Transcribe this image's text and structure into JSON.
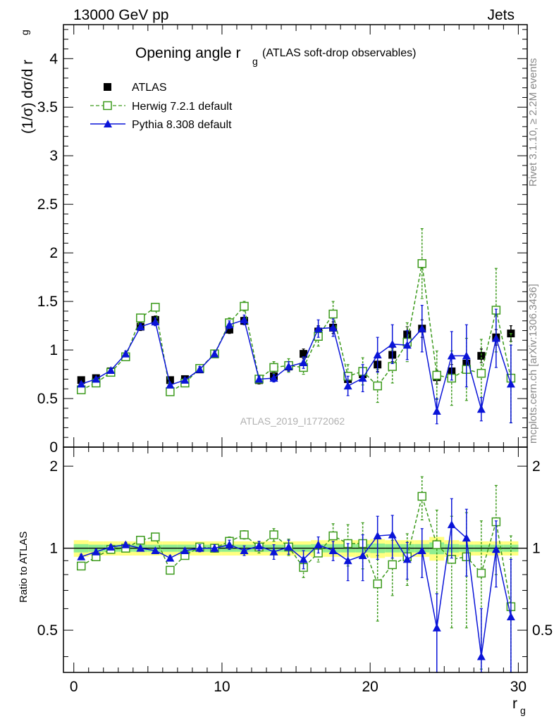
{
  "header": {
    "left": "13000 GeV pp",
    "right": "Jets"
  },
  "title": {
    "main": "Opening angle r",
    "sub": "g",
    "tail": "(ATLAS soft-drop observables)"
  },
  "side": {
    "rivet": "Rivet 3.1.10, ≥ 2.2M events",
    "mcplots": "mcplots.cern.ch [arXiv:1306.3436]"
  },
  "watermark": "ATLAS_2019_I1772062",
  "axes": {
    "ylabel_main": "(1/σ) dσ/d r",
    "ylabel_main_sub": "g",
    "ylabel_ratio": "Ratio to ATLAS",
    "xlabel": "r",
    "xlabel_sub": "g"
  },
  "colors": {
    "data": "#000000",
    "herwig": "#3c9a1c",
    "pythia": "#0a14d8",
    "band_yellow": "#ffff80",
    "band_green": "#90ee90"
  },
  "legend": [
    {
      "label": "ATLAS"
    },
    {
      "label": "Herwig 7.2.1 default"
    },
    {
      "label": "Pythia 8.308 default"
    }
  ],
  "chart_data": {
    "type": "scatter",
    "x": [
      0.5,
      1.5,
      2.5,
      3.5,
      4.5,
      5.5,
      6.5,
      7.5,
      8.5,
      9.5,
      10.5,
      11.5,
      12.5,
      13.5,
      14.5,
      15.5,
      16.5,
      17.5,
      18.5,
      19.5,
      20.5,
      21.5,
      22.5,
      23.5,
      24.5,
      25.5,
      26.5,
      27.5,
      28.5,
      29.5
    ],
    "xlim": [
      -0.7,
      30.6
    ],
    "ylim": [
      0,
      4.35
    ],
    "ratio_ylim": [
      0.35,
      2.35
    ],
    "x_ticks": [
      0,
      10,
      20,
      30
    ],
    "y_ticks": [
      0,
      0.5,
      1,
      1.5,
      2,
      2.5,
      3,
      3.5,
      4
    ],
    "ratio_y_ticks": [
      0.5,
      1,
      2
    ],
    "series": [
      {
        "name": "ATLAS",
        "values": [
          0.69,
          0.71,
          0.78,
          0.93,
          1.24,
          1.31,
          0.69,
          0.7,
          0.8,
          0.96,
          1.21,
          1.3,
          0.69,
          0.73,
          0.83,
          0.96,
          1.19,
          1.23,
          0.7,
          0.75,
          0.85,
          0.95,
          1.16,
          1.22,
          0.72,
          0.78,
          0.86,
          0.94,
          1.13,
          1.17
        ],
        "errors": [
          0.03,
          0.03,
          0.03,
          0.03,
          0.04,
          0.04,
          0.03,
          0.03,
          0.03,
          0.03,
          0.04,
          0.04,
          0.04,
          0.04,
          0.04,
          0.05,
          0.06,
          0.06,
          0.06,
          0.06,
          0.07,
          0.07,
          0.08,
          0.09,
          0.07,
          0.07,
          0.07,
          0.07,
          0.08,
          0.08
        ]
      },
      {
        "name": "Herwig 7.2.1 default",
        "values": [
          0.59,
          0.66,
          0.77,
          0.93,
          1.33,
          1.44,
          0.57,
          0.66,
          0.81,
          0.96,
          1.28,
          1.45,
          0.7,
          0.82,
          0.84,
          0.82,
          1.14,
          1.37,
          0.73,
          0.78,
          0.63,
          0.83,
          1.08,
          1.89,
          0.74,
          0.71,
          0.8,
          0.76,
          1.41,
          0.71
        ],
        "errors": [
          0.02,
          0.02,
          0.02,
          0.03,
          0.04,
          0.04,
          0.02,
          0.02,
          0.03,
          0.03,
          0.05,
          0.05,
          0.04,
          0.06,
          0.07,
          0.07,
          0.1,
          0.13,
          0.12,
          0.14,
          0.17,
          0.17,
          0.2,
          0.36,
          0.25,
          0.28,
          0.32,
          0.35,
          0.43,
          0.46
        ],
        "ratio": [
          0.86,
          0.93,
          0.99,
          1.0,
          1.07,
          1.1,
          0.83,
          0.94,
          1.01,
          1.0,
          1.06,
          1.12,
          1.01,
          1.12,
          1.01,
          0.85,
          0.96,
          1.11,
          1.04,
          1.04,
          0.74,
          0.87,
          0.93,
          1.55,
          1.03,
          0.91,
          0.93,
          0.81,
          1.25,
          0.61
        ],
        "ratio_errors": [
          0.02,
          0.02,
          0.02,
          0.02,
          0.03,
          0.03,
          0.02,
          0.02,
          0.03,
          0.03,
          0.04,
          0.04,
          0.05,
          0.06,
          0.07,
          0.07,
          0.07,
          0.12,
          0.18,
          0.2,
          0.2,
          0.2,
          0.2,
          0.28,
          0.35,
          0.4,
          0.42,
          0.45,
          0.45,
          0.5
        ]
      },
      {
        "name": "Pythia 8.308 default",
        "values": [
          0.65,
          0.7,
          0.79,
          0.96,
          1.24,
          1.29,
          0.64,
          0.69,
          0.8,
          0.96,
          1.26,
          1.31,
          0.7,
          0.71,
          0.83,
          0.87,
          1.22,
          1.23,
          0.63,
          0.71,
          0.95,
          1.06,
          1.05,
          1.22,
          0.37,
          0.94,
          0.94,
          0.39,
          1.12,
          0.65
        ],
        "errors": [
          0.02,
          0.02,
          0.02,
          0.03,
          0.03,
          0.04,
          0.02,
          0.02,
          0.03,
          0.03,
          0.04,
          0.05,
          0.03,
          0.04,
          0.05,
          0.06,
          0.09,
          0.09,
          0.1,
          0.14,
          0.18,
          0.2,
          0.15,
          0.24,
          0.13,
          0.25,
          0.32,
          0.12,
          0.3,
          0.4
        ],
        "ratio": [
          0.93,
          0.97,
          1.01,
          1.03,
          1.0,
          0.98,
          0.92,
          0.98,
          1.0,
          1.0,
          1.03,
          0.98,
          1.02,
          0.97,
          1.01,
          0.91,
          1.03,
          0.98,
          0.9,
          0.94,
          1.11,
          1.12,
          0.91,
          0.98,
          0.51,
          1.22,
          1.09,
          0.4,
          0.99,
          0.56
        ],
        "ratio_errors": [
          0.02,
          0.02,
          0.02,
          0.02,
          0.02,
          0.02,
          0.02,
          0.02,
          0.03,
          0.03,
          0.04,
          0.04,
          0.04,
          0.06,
          0.06,
          0.07,
          0.07,
          0.08,
          0.14,
          0.18,
          0.2,
          0.2,
          0.14,
          0.2,
          0.17,
          0.3,
          0.3,
          0.2,
          0.27,
          0.35
        ]
      }
    ],
    "bands": {
      "yellow": [
        0.07,
        0.06,
        0.06,
        0.06,
        0.06,
        0.06,
        0.06,
        0.06,
        0.06,
        0.06,
        0.06,
        0.06,
        0.06,
        0.06,
        0.06,
        0.06,
        0.07,
        0.07,
        0.07,
        0.07,
        0.08,
        0.07,
        0.07,
        0.07,
        0.1,
        0.07,
        0.06,
        0.06,
        0.06,
        0.06
      ],
      "green": [
        0.035,
        0.03,
        0.03,
        0.03,
        0.03,
        0.03,
        0.03,
        0.03,
        0.03,
        0.03,
        0.03,
        0.03,
        0.03,
        0.03,
        0.03,
        0.03,
        0.035,
        0.035,
        0.035,
        0.035,
        0.04,
        0.035,
        0.035,
        0.035,
        0.05,
        0.035,
        0.03,
        0.03,
        0.03,
        0.03
      ]
    }
  }
}
